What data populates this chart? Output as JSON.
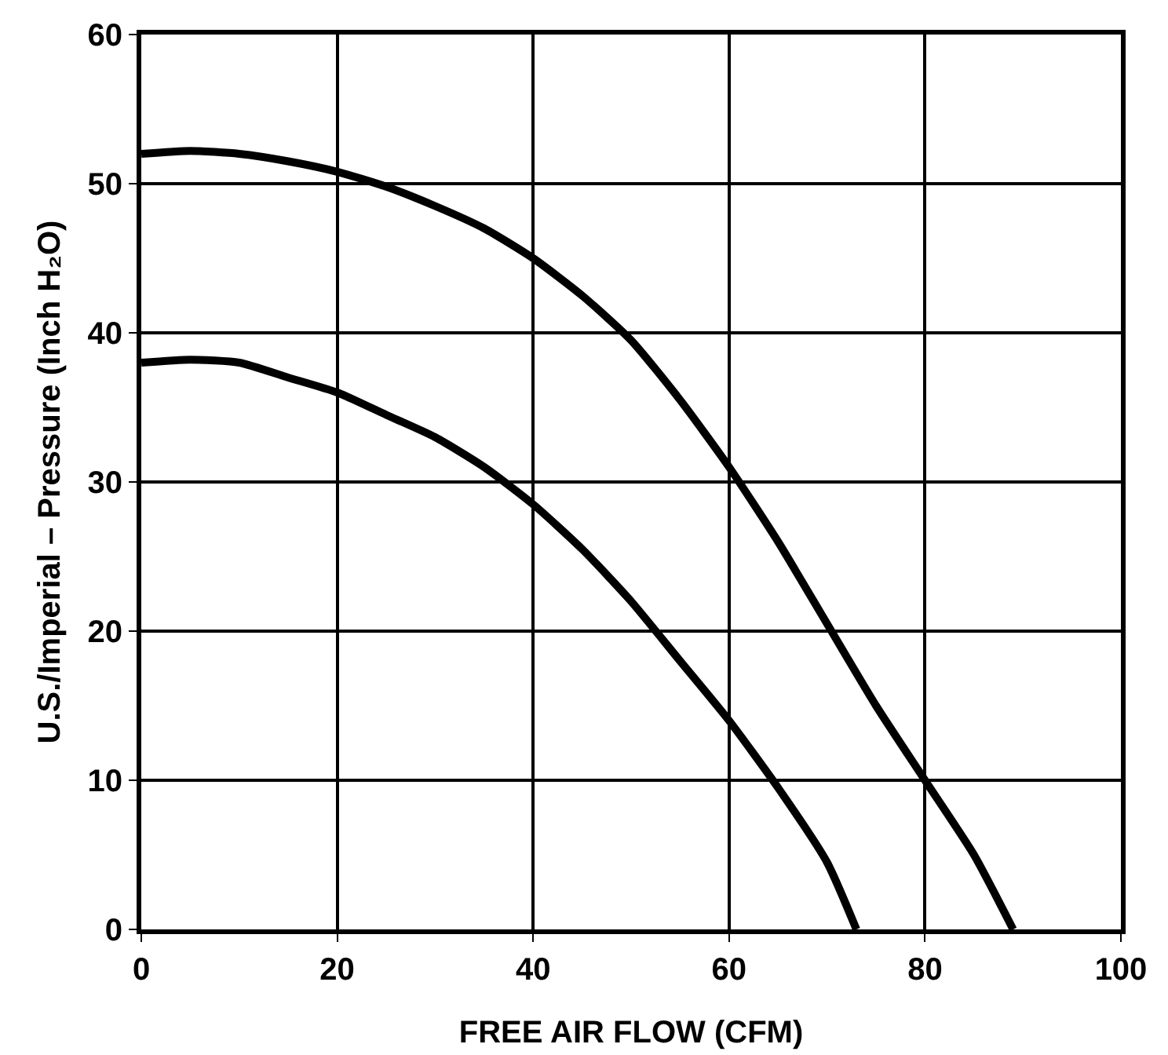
{
  "chart_data": {
    "type": "line",
    "xlabel": "FREE AIR FLOW (CFM)",
    "ylabel": "U.S./Imperial – Pressure (Inch H₂O)",
    "xlim": [
      0,
      100
    ],
    "xticks": [
      0,
      20,
      40,
      60,
      80,
      100
    ],
    "ylim": [
      0,
      60
    ],
    "yticks": [
      0,
      10,
      20,
      30,
      40,
      50,
      60
    ],
    "grid": true,
    "marker": "none",
    "line_style": "solid",
    "series": [
      {
        "color": "#000000",
        "x": [
          0,
          5,
          10,
          15,
          20,
          25,
          30,
          35,
          40,
          45,
          50,
          55,
          60,
          65,
          70,
          75,
          80,
          85,
          89
        ],
        "values": [
          52,
          52.2,
          52,
          51.5,
          50.8,
          49.8,
          48.5,
          47,
          45,
          42.5,
          39.5,
          35.5,
          31,
          26,
          20.5,
          15,
          10,
          5,
          0
        ]
      },
      {
        "color": "#000000",
        "x": [
          0,
          5,
          10,
          15,
          20,
          25,
          30,
          35,
          40,
          45,
          50,
          55,
          60,
          65,
          70,
          73
        ],
        "values": [
          38,
          38.2,
          38,
          37,
          36,
          34.5,
          33,
          31,
          28.5,
          25.5,
          22,
          18,
          14,
          9.5,
          4.5,
          0
        ]
      }
    ]
  }
}
